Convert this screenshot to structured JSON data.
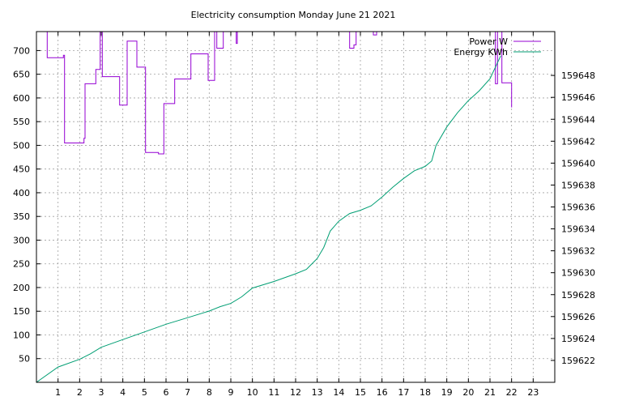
{
  "chart_data": {
    "type": "line",
    "title": "Electricity consumption Monday June 21 2021",
    "xlabel": "",
    "ylabel": "",
    "y2label": "",
    "xlim": [
      0,
      24
    ],
    "ylim": [
      0,
      740
    ],
    "y2lim": [
      159620,
      159652
    ],
    "grid": true,
    "legend_position": "top-right",
    "x_ticks": [
      1,
      2,
      3,
      4,
      5,
      6,
      7,
      8,
      9,
      10,
      11,
      12,
      13,
      14,
      15,
      16,
      17,
      18,
      19,
      20,
      21,
      22,
      23
    ],
    "y_ticks": [
      50,
      100,
      150,
      200,
      250,
      300,
      350,
      400,
      450,
      500,
      550,
      600,
      650,
      700
    ],
    "y2_ticks": [
      159622,
      159624,
      159626,
      159628,
      159630,
      159632,
      159634,
      159636,
      159638,
      159640,
      159642,
      159644,
      159646,
      159648
    ],
    "series": [
      {
        "name": "Power W",
        "axis": "y",
        "color": "#9400d3",
        "style": "steps",
        "x": [
          0,
          0.5,
          0.5,
          1.2,
          1.25,
          1.3,
          2.15,
          2.2,
          2.25,
          2.7,
          2.75,
          2.9,
          2.95,
          3.0,
          3.05,
          3.8,
          3.85,
          4.15,
          4.2,
          4.6,
          4.65,
          5.0,
          5.05,
          5.6,
          5.65,
          5.85,
          5.9,
          6.35,
          6.4,
          7.1,
          7.15,
          7.9,
          7.95,
          8.2,
          8.25,
          8.3,
          8.35,
          8.6,
          8.65,
          9.1,
          9.15,
          9.25,
          9.3,
          14.45,
          14.5,
          14.65,
          14.7,
          14.75,
          14.8,
          15.05,
          15.1,
          15.55,
          15.6,
          15.7,
          15.75,
          20.95,
          21.0,
          21.2,
          21.25,
          21.3,
          21.35,
          21.5,
          21.55,
          21.65,
          21.7,
          21.95,
          22.0
        ],
        "y": [
          740,
          740,
          685,
          685,
          690,
          505,
          505,
          515,
          630,
          630,
          660,
          660,
          740,
          740,
          645,
          645,
          585,
          585,
          720,
          720,
          665,
          665,
          485,
          485,
          482,
          482,
          588,
          588,
          640,
          640,
          693,
          693,
          637,
          637,
          740,
          740,
          705,
          705,
          740,
          740,
          740,
          715,
          740,
          740,
          705,
          705,
          712,
          712,
          740,
          740,
          745,
          745,
          733,
          733,
          740,
          740,
          740,
          740,
          630,
          630,
          740,
          740,
          632,
          632,
          632,
          632,
          580
        ]
      },
      {
        "name": "Energy KWh",
        "axis": "y2",
        "color": "#009e73",
        "style": "line",
        "x": [
          0,
          1,
          2,
          2.5,
          3,
          4,
          5,
          6,
          7,
          8,
          8.5,
          9,
          9.5,
          10,
          11,
          12,
          12.5,
          13,
          13.3,
          13.6,
          14,
          14.5,
          15,
          15.5,
          16,
          16.5,
          17,
          17.5,
          18,
          18.3,
          18.5,
          19,
          19.5,
          20,
          20.5,
          21,
          21.5
        ],
        "y": [
          159620,
          159621.4,
          159622.1,
          159622.6,
          159623.2,
          159623.9,
          159624.6,
          159625.3,
          159625.9,
          159626.5,
          159626.9,
          159627.2,
          159627.8,
          159628.6,
          159629.2,
          159629.9,
          159630.3,
          159631.3,
          159632.3,
          159633.8,
          159634.7,
          159635.4,
          159635.7,
          159636.1,
          159636.9,
          159637.8,
          159638.6,
          159639.3,
          159639.7,
          159640.2,
          159641.6,
          159643.3,
          159644.6,
          159645.7,
          159646.6,
          159647.7,
          159649.8
        ]
      }
    ]
  }
}
